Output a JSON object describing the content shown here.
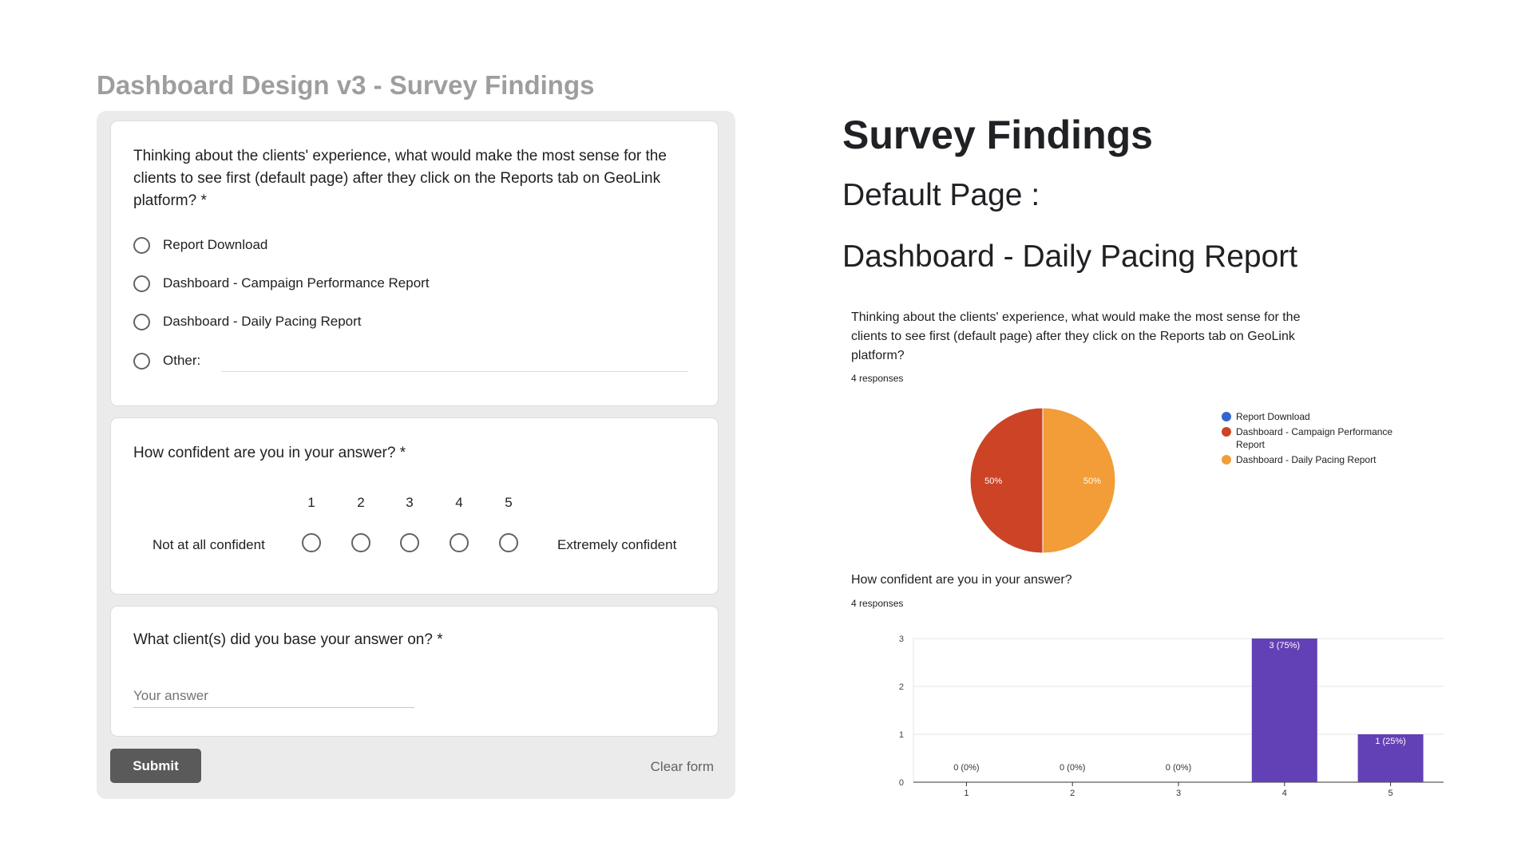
{
  "slide": {
    "title": "Dashboard Design v3 - Survey Findings"
  },
  "form": {
    "q1": {
      "text": "Thinking about the clients' experience, what would make the most sense for the clients to see first (default page) after they click on the Reports tab on GeoLink platform?",
      "required_mark": "*",
      "options": [
        "Report Download",
        "Dashboard - Campaign Performance Report",
        "Dashboard - Daily Pacing Report",
        "Other:"
      ]
    },
    "q2": {
      "text": "How confident are you in your answer?",
      "required_mark": "*",
      "scale": [
        "1",
        "2",
        "3",
        "4",
        "5"
      ],
      "low_label": "Not at all confident",
      "high_label": "Extremely confident"
    },
    "q3": {
      "text": "What client(s) did you base your answer on?",
      "required_mark": "*",
      "placeholder": "Your answer"
    },
    "submit_label": "Submit",
    "clear_label": "Clear form"
  },
  "findings": {
    "title": "Survey Findings",
    "subtitle1": "Default Page :",
    "subtitle2": "Dashboard - Daily Pacing Report"
  },
  "summary1": {
    "question": "Thinking about the clients' experience, what would make the most sense for the clients to see first (default page) after they click on the Reports tab on GeoLink platform?",
    "responses": "4 responses"
  },
  "summary2": {
    "question": "How confident are you in your answer?",
    "responses": "4 responses"
  },
  "chart_data": [
    {
      "type": "pie",
      "categories": [
        "Report Download",
        "Dashboard - Campaign Performance Report",
        "Dashboard - Daily Pacing Report"
      ],
      "values": [
        0,
        2,
        2
      ],
      "labels": [
        "",
        "50%",
        "50%"
      ],
      "colors": [
        "#3366cc",
        "#cc4425",
        "#f29d38"
      ],
      "legend": "right"
    },
    {
      "type": "bar",
      "categories": [
        "1",
        "2",
        "3",
        "4",
        "5"
      ],
      "values": [
        0,
        0,
        0,
        3,
        1
      ],
      "labels": [
        "0 (0%)",
        "0 (0%)",
        "0 (0%)",
        "3 (75%)",
        "1 (25%)"
      ],
      "ylim": [
        0,
        3
      ],
      "yticks": [
        "0",
        "1",
        "2",
        "3"
      ],
      "color": "#6240b5",
      "grid": true
    }
  ]
}
